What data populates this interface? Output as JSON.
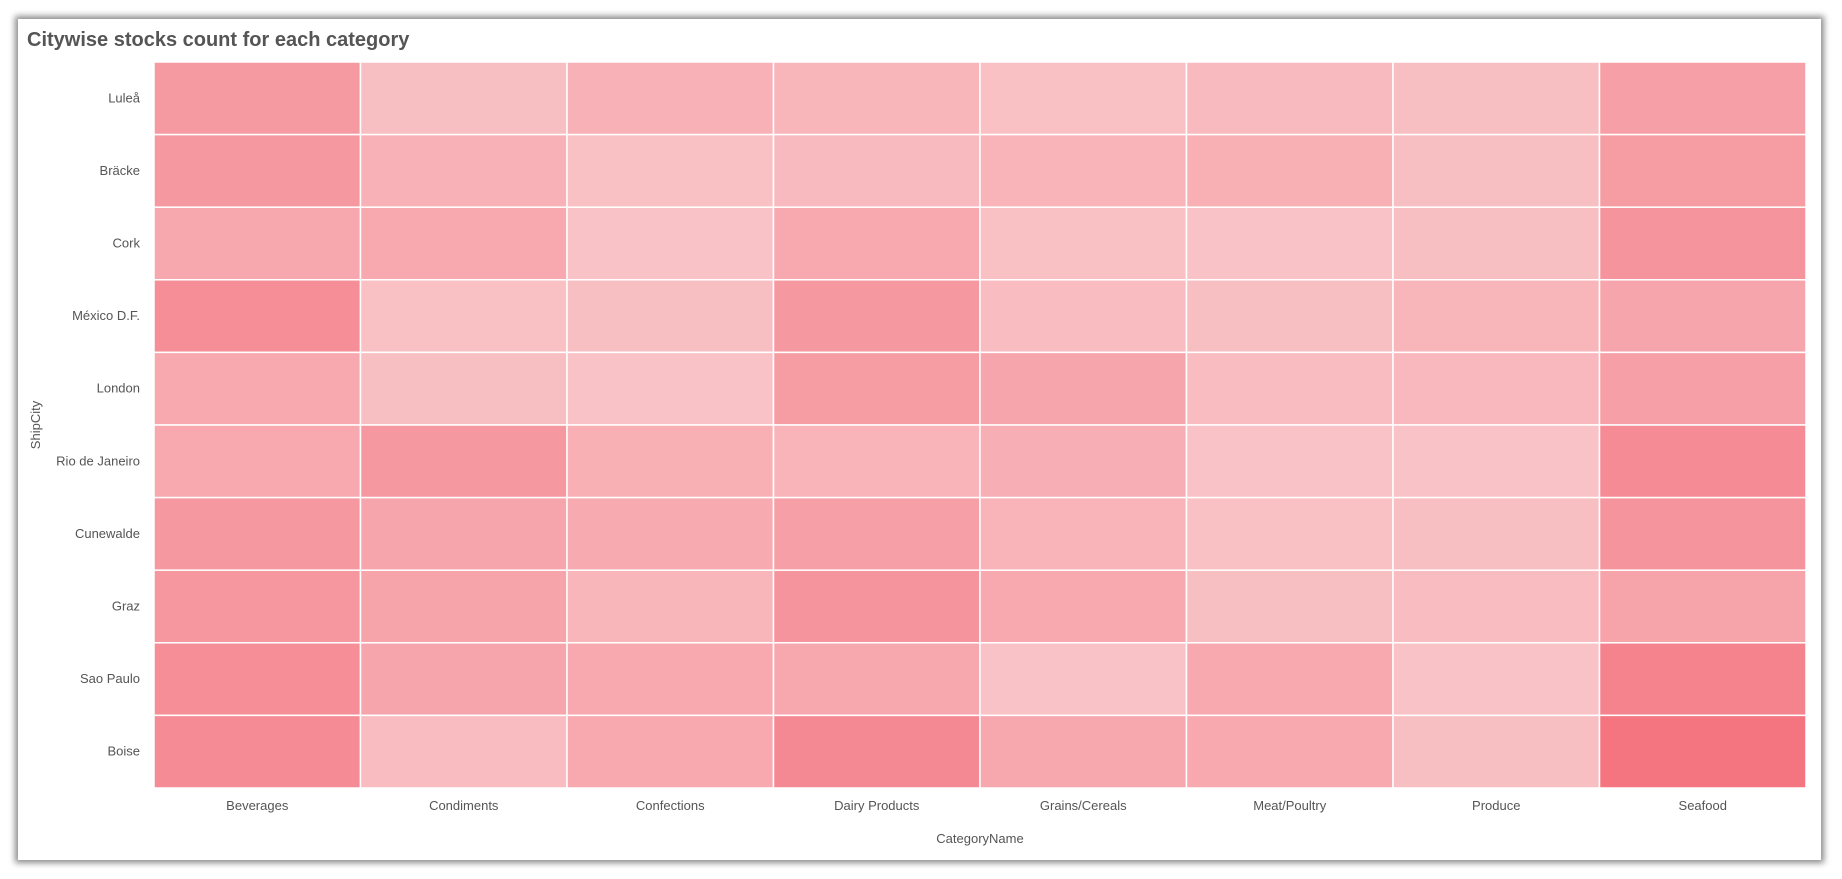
{
  "chart_data": {
    "type": "heatmap",
    "title": "Citywise stocks count for each category",
    "xlabel": "CategoryName",
    "ylabel": "ShipCity",
    "x_categories": [
      "Beverages",
      "Condiments",
      "Confections",
      "Dairy Products",
      "Grains/Cereals",
      "Meat/Poultry",
      "Produce",
      "Seafood"
    ],
    "y_categories": [
      "Luleå",
      "Bräcke",
      "Cork",
      "México D.F.",
      "London",
      "Rio de Janeiro",
      "Cunewalde",
      "Graz",
      "Sao Paulo",
      "Boise"
    ],
    "values": [
      [
        0.55,
        0.12,
        0.28,
        0.22,
        0.1,
        0.18,
        0.12,
        0.5
      ],
      [
        0.58,
        0.28,
        0.1,
        0.18,
        0.25,
        0.3,
        0.12,
        0.52
      ],
      [
        0.4,
        0.38,
        0.08,
        0.38,
        0.1,
        0.08,
        0.12,
        0.62
      ],
      [
        0.7,
        0.1,
        0.12,
        0.58,
        0.15,
        0.12,
        0.22,
        0.42
      ],
      [
        0.38,
        0.12,
        0.08,
        0.52,
        0.42,
        0.15,
        0.2,
        0.5
      ],
      [
        0.38,
        0.58,
        0.3,
        0.25,
        0.32,
        0.08,
        0.08,
        0.72
      ],
      [
        0.58,
        0.42,
        0.35,
        0.5,
        0.25,
        0.1,
        0.12,
        0.62
      ],
      [
        0.6,
        0.45,
        0.22,
        0.62,
        0.38,
        0.12,
        0.15,
        0.45
      ],
      [
        0.7,
        0.42,
        0.38,
        0.4,
        0.08,
        0.38,
        0.08,
        0.82
      ],
      [
        0.72,
        0.15,
        0.38,
        0.75,
        0.4,
        0.38,
        0.12,
        1.0
      ]
    ],
    "color_low": "#f9c9cc",
    "color_high": "#f47480",
    "grid_line_color": "#ffffff",
    "legend": "none"
  }
}
